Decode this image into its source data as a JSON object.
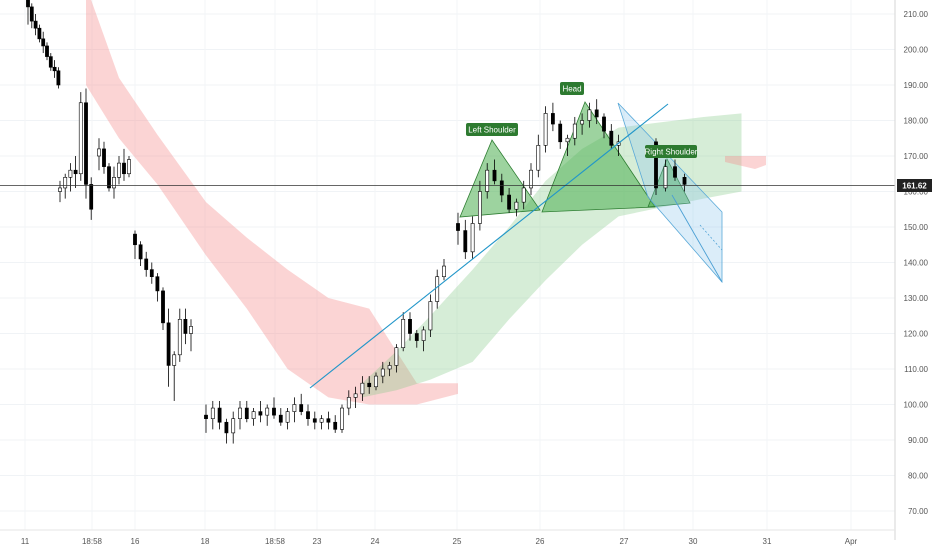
{
  "chart_data": {
    "type": "candlestick",
    "y_axis": {
      "ticks": [
        "210.00",
        "200.00",
        "190.00",
        "180.00",
        "170.00",
        "160.00",
        "150.00",
        "140.00",
        "130.00",
        "120.00",
        "110.00",
        "100.00",
        "90.00",
        "80.00",
        "70.00"
      ],
      "ylim": [
        65,
        214
      ]
    },
    "x_axis": {
      "ticks": [
        "11",
        "18:58",
        "16",
        "18",
        "18:58",
        "23",
        "24",
        "25",
        "26",
        "27",
        "30",
        "31",
        "Apr"
      ]
    },
    "last_price": "161.62",
    "pattern_labels": {
      "left_shoulder": "Left Shoulder",
      "head": "Head",
      "right_shoulder": "Right Shoulder"
    },
    "candles": [
      [
        0,
        215,
        216,
        207,
        212
      ],
      [
        1,
        212,
        213,
        206,
        208
      ],
      [
        2,
        208,
        210,
        204,
        206
      ],
      [
        3,
        206,
        207,
        202,
        203
      ],
      [
        4,
        203,
        205,
        199,
        201
      ],
      [
        5,
        201,
        202,
        197,
        198
      ],
      [
        6,
        198,
        199,
        194,
        195
      ],
      [
        7,
        195,
        197,
        192,
        194
      ],
      [
        8,
        194,
        195,
        189,
        190
      ],
      [
        9,
        160,
        163,
        157,
        161
      ],
      [
        10,
        161,
        165,
        158,
        164
      ],
      [
        11,
        164,
        168,
        160,
        166
      ],
      [
        12,
        166,
        170,
        161,
        165
      ],
      [
        13,
        165,
        188,
        163,
        185
      ],
      [
        14,
        185,
        189,
        158,
        162
      ],
      [
        15,
        162,
        164,
        152,
        155
      ],
      [
        16,
        170,
        175,
        166,
        172
      ],
      [
        17,
        172,
        174,
        165,
        167
      ],
      [
        18,
        167,
        168,
        160,
        161
      ],
      [
        19,
        161,
        167,
        158,
        164
      ],
      [
        20,
        164,
        170,
        162,
        168
      ],
      [
        21,
        168,
        172,
        163,
        165
      ],
      [
        22,
        165,
        170,
        164,
        169
      ],
      [
        23,
        148,
        149,
        141,
        145
      ],
      [
        24,
        145,
        146,
        139,
        141
      ],
      [
        25,
        141,
        143,
        136,
        138
      ],
      [
        26,
        138,
        140,
        134,
        136
      ],
      [
        27,
        136,
        137,
        129,
        132
      ],
      [
        28,
        132,
        133,
        121,
        123
      ],
      [
        29,
        123,
        127,
        105,
        111
      ],
      [
        30,
        111,
        115,
        101,
        114
      ],
      [
        31,
        114,
        127,
        112,
        124
      ],
      [
        32,
        124,
        127,
        117,
        120
      ],
      [
        33,
        120,
        124,
        115,
        122
      ],
      [
        34,
        97,
        100,
        92,
        96
      ],
      [
        35,
        96,
        101,
        93,
        99
      ],
      [
        36,
        99,
        101,
        93,
        95
      ],
      [
        37,
        95,
        96,
        89,
        92
      ],
      [
        38,
        92,
        98,
        89,
        96
      ],
      [
        39,
        96,
        101,
        93,
        99
      ],
      [
        40,
        99,
        101,
        95,
        96
      ],
      [
        41,
        96,
        99,
        94,
        98
      ],
      [
        42,
        98,
        101,
        95,
        97
      ],
      [
        43,
        97,
        100,
        94,
        99
      ],
      [
        44,
        99,
        102,
        96,
        97
      ],
      [
        45,
        97,
        99,
        94,
        95
      ],
      [
        46,
        95,
        99,
        93,
        98
      ],
      [
        47,
        98,
        102,
        95,
        100
      ],
      [
        48,
        100,
        103,
        97,
        98
      ],
      [
        49,
        98,
        100,
        94,
        96
      ],
      [
        50,
        96,
        98,
        93,
        95
      ],
      [
        51,
        95,
        97,
        93,
        96
      ],
      [
        52,
        96,
        98,
        93,
        95
      ],
      [
        53,
        95,
        97,
        92,
        93
      ],
      [
        54,
        93,
        100,
        92,
        99
      ],
      [
        55,
        99,
        104,
        97,
        102
      ],
      [
        56,
        102,
        105,
        99,
        103
      ],
      [
        57,
        103,
        108,
        101,
        106
      ],
      [
        58,
        106,
        108,
        103,
        105
      ],
      [
        59,
        105,
        109,
        104,
        108
      ],
      [
        60,
        108,
        112,
        106,
        110
      ],
      [
        61,
        110,
        112,
        108,
        111
      ],
      [
        62,
        111,
        117,
        109,
        116
      ],
      [
        63,
        116,
        126,
        115,
        124
      ],
      [
        64,
        124,
        126,
        118,
        120
      ],
      [
        65,
        120,
        121,
        116,
        118
      ],
      [
        66,
        118,
        122,
        115,
        121
      ],
      [
        67,
        121,
        131,
        119,
        129
      ],
      [
        68,
        129,
        138,
        127,
        136
      ],
      [
        69,
        136,
        141,
        135,
        139
      ],
      [
        70,
        151,
        154,
        145,
        149
      ],
      [
        71,
        149,
        152,
        141,
        143
      ],
      [
        72,
        143,
        153,
        141,
        151
      ],
      [
        73,
        151,
        163,
        149,
        160
      ],
      [
        74,
        160,
        168,
        158,
        166
      ],
      [
        75,
        166,
        169,
        162,
        163
      ],
      [
        76,
        163,
        165,
        157,
        159
      ],
      [
        77,
        159,
        161,
        154,
        155
      ],
      [
        78,
        155,
        158,
        153,
        157
      ],
      [
        79,
        157,
        163,
        155,
        161
      ],
      [
        80,
        161,
        168,
        159,
        166
      ],
      [
        81,
        166,
        176,
        164,
        173
      ],
      [
        82,
        173,
        184,
        171,
        182
      ],
      [
        83,
        182,
        185,
        177,
        179
      ],
      [
        84,
        179,
        180,
        172,
        174
      ],
      [
        85,
        174,
        176,
        170,
        175
      ],
      [
        86,
        175,
        181,
        173,
        179
      ],
      [
        87,
        179,
        182,
        176,
        180
      ],
      [
        88,
        180,
        185,
        178,
        183
      ],
      [
        89,
        183,
        186,
        179,
        181
      ],
      [
        90,
        181,
        182,
        175,
        177
      ],
      [
        91,
        177,
        179,
        172,
        173
      ],
      [
        92,
        173,
        176,
        170,
        174
      ],
      [
        93,
        174,
        175,
        159,
        161
      ],
      [
        94,
        161,
        169,
        160,
        167
      ],
      [
        95,
        167,
        169,
        163,
        164
      ],
      [
        96,
        164,
        165,
        160,
        162
      ]
    ],
    "cloud_red": {
      "x": [
        14,
        20,
        27,
        34,
        40,
        46,
        52,
        58,
        65,
        70
      ],
      "top": [
        218,
        192,
        176,
        157,
        147,
        138,
        130,
        127,
        106,
        106
      ],
      "bot": [
        190,
        175,
        162,
        142,
        127,
        110,
        102,
        100,
        100,
        103
      ]
    },
    "cloud_green": {
      "x": [
        57,
        62,
        67,
        72,
        77,
        82,
        87,
        92,
        98,
        102
      ],
      "top": [
        106,
        115,
        125,
        138,
        150,
        163,
        172,
        178,
        181,
        182
      ],
      "bot": [
        102,
        104,
        107,
        112,
        124,
        135,
        145,
        153,
        158,
        160
      ]
    },
    "cloud_red2": {
      "x": [
        102,
        107
      ],
      "top": [
        170,
        169
      ],
      "bot": [
        168,
        167
      ]
    }
  }
}
